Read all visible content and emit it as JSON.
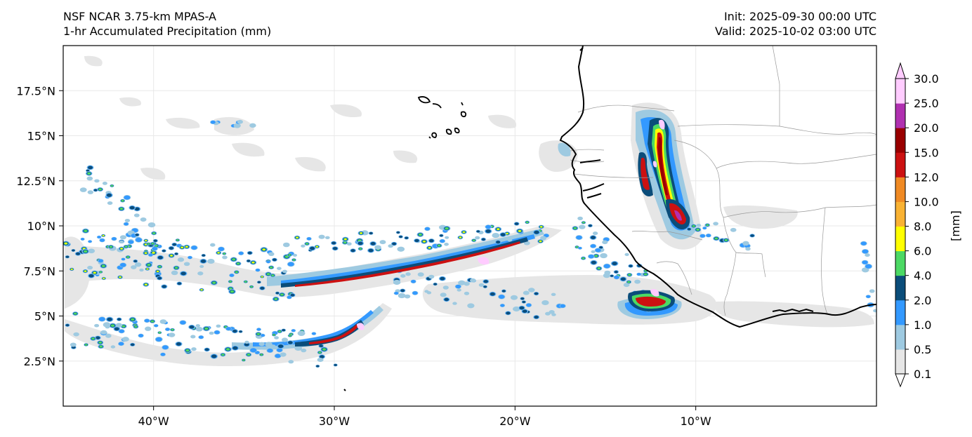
{
  "header": {
    "model": "NSF NCAR 3.75-km MPAS-A",
    "field": "1-hr Accumulated Precipitation (mm)",
    "init": "Init: 2025-09-30 00:00 UTC",
    "valid": "Valid: 2025-10-02 03:00 UTC"
  },
  "map": {
    "lon_range": [
      -45,
      0
    ],
    "lat_range": [
      0,
      20
    ],
    "lat_ticks": [
      {
        "value": 17.5,
        "label": "17.5°N"
      },
      {
        "value": 15,
        "label": "15°N"
      },
      {
        "value": 12.5,
        "label": "12.5°N"
      },
      {
        "value": 10,
        "label": "10°N"
      },
      {
        "value": 7.5,
        "label": "7.5°N"
      },
      {
        "value": 5,
        "label": "5°N"
      },
      {
        "value": 2.5,
        "label": "2.5°N"
      }
    ],
    "lon_ticks": [
      {
        "value": -40,
        "label": "40°W"
      },
      {
        "value": -30,
        "label": "30°W"
      },
      {
        "value": -20,
        "label": "20°W"
      },
      {
        "value": -10,
        "label": "10°W"
      }
    ]
  },
  "colorbar": {
    "title": "[mm]",
    "levels": [
      "0.1",
      "0.5",
      "1.0",
      "2.0",
      "4.0",
      "6.0",
      "8.0",
      "10.0",
      "12.0",
      "15.0",
      "20.0",
      "25.0",
      "30.0"
    ],
    "colors": [
      "#e6e6e6",
      "#9ecae1",
      "#3399ff",
      "#0b4d7a",
      "#4cd964",
      "#ffff00",
      "#f9b233",
      "#f08a24",
      "#cc1111",
      "#990000",
      "#b030b0",
      "#ffccff"
    ],
    "under_color": "#ffffff",
    "over_color": "#ffccff"
  },
  "colors": {
    "coast": "#000000",
    "borders": "#888888",
    "gridlines": "#dddddd"
  }
}
